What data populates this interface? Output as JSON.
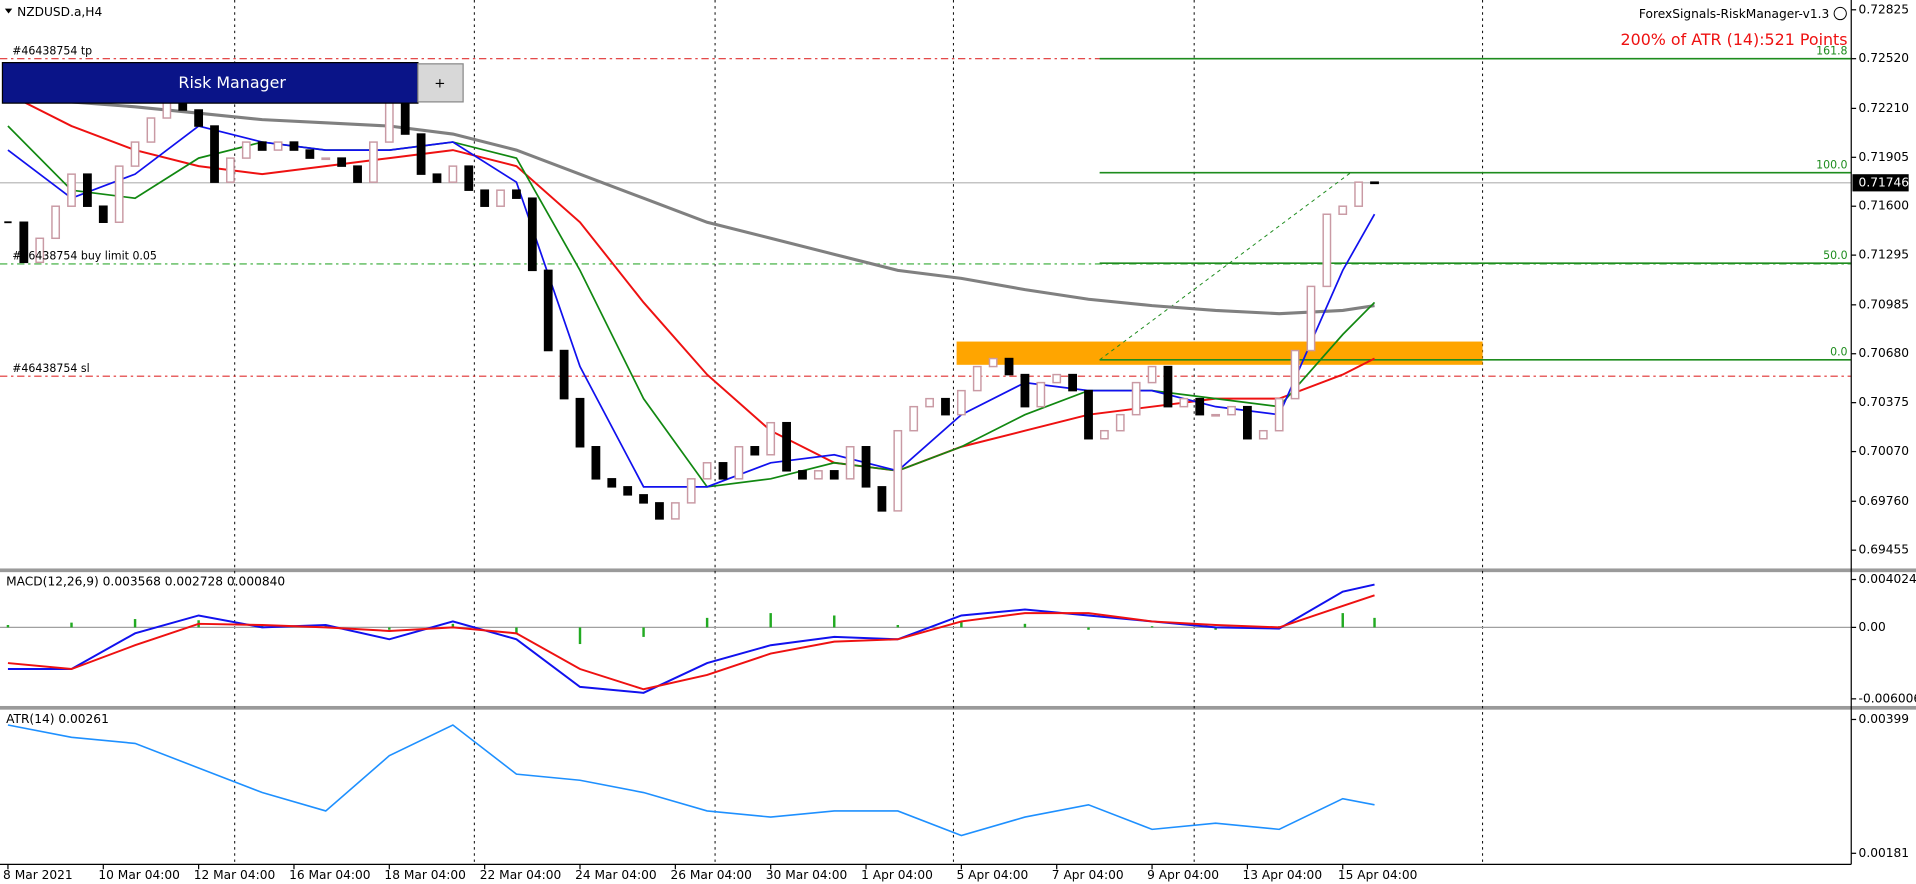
{
  "header": {
    "symbol": "NZDUSD.a,H4",
    "indicator": "ForexSignals-RiskManager-v1.3",
    "annotation": "200% of ATR (14):521 Points"
  },
  "ui": {
    "panel_title": "Risk Manager",
    "button": "+"
  },
  "chart_data": [
    {
      "type": "candlestick",
      "xlim": [
        -0.5,
        116
      ],
      "ylim": [
        0.69341,
        0.72886
      ],
      "yticks": [
        0.72825,
        {
          "value": 0.7252,
          "label": "0.72520"
        },
        {
          "value": 0.7221,
          "label": "0.72210"
        },
        0.71905,
        {
          "value": 0.716,
          "label": "0.71600"
        },
        0.71295,
        0.70985,
        {
          "value": 0.7068,
          "label": "0.70680"
        },
        0.70375,
        {
          "value": 0.7007,
          "label": "0.70070"
        },
        {
          "value": 0.6976,
          "label": "0.69760"
        },
        0.69455
      ],
      "separators": [
        14.27,
        29.35,
        44.5,
        59.5,
        74.65,
        92.8
      ],
      "up_color": "#c99aa4",
      "down_color": "#000000",
      "close": [
        0.715,
        0.7125,
        0.714,
        0.716,
        0.718,
        0.716,
        0.715,
        0.7185,
        0.72,
        0.7215,
        0.7225,
        0.722,
        0.721,
        0.7175,
        0.719,
        0.72,
        0.7195,
        0.72,
        0.7195,
        0.719,
        0.719,
        0.7185,
        0.7175,
        0.72,
        0.7225,
        0.7205,
        0.718,
        0.7175,
        0.7185,
        0.717,
        0.716,
        0.717,
        0.7165,
        0.712,
        0.707,
        0.704,
        0.701,
        0.699,
        0.6985,
        0.698,
        0.6975,
        0.6965,
        0.6975,
        0.699,
        0.7,
        0.699,
        0.701,
        0.7005,
        0.7025,
        0.6995,
        0.699,
        0.6995,
        0.699,
        0.701,
        0.6985,
        0.697,
        0.702,
        0.7035,
        0.704,
        0.703,
        0.7045,
        0.706,
        0.7065,
        0.7055,
        0.7035,
        0.705,
        0.7055,
        0.7045,
        0.7015,
        0.702,
        0.703,
        0.705,
        0.706,
        0.7035,
        0.704,
        0.703,
        0.703,
        0.7035,
        0.7015,
        0.702,
        0.704,
        0.707,
        0.711,
        0.7155,
        0.716,
        0.7175,
        0.71746
      ],
      "series": [
        {
          "color": "#808080",
          "width": 2.5,
          "x": [
            0,
            4,
            8,
            12,
            16,
            20,
            24,
            28,
            32,
            36,
            40,
            44,
            48,
            52,
            56,
            60,
            64,
            68,
            72,
            76,
            80,
            84,
            86
          ],
          "values": [
            0.723,
            0.7225,
            0.7222,
            0.7218,
            0.7214,
            0.7212,
            0.721,
            0.7205,
            0.7195,
            0.718,
            0.7165,
            0.715,
            0.714,
            0.713,
            0.712,
            0.7115,
            0.7108,
            0.7102,
            0.7098,
            0.7095,
            0.7093,
            0.7095,
            0.7098
          ]
        },
        {
          "color": "#ee1111",
          "width": 1.6,
          "x": [
            0,
            4,
            8,
            12,
            16,
            20,
            24,
            28,
            32,
            36,
            40,
            44,
            48,
            52,
            56,
            60,
            64,
            68,
            72,
            76,
            80,
            84,
            86
          ],
          "values": [
            0.723,
            0.721,
            0.7195,
            0.7185,
            0.718,
            0.7185,
            0.719,
            0.7195,
            0.7185,
            0.715,
            0.71,
            0.7055,
            0.702,
            0.7,
            0.6995,
            0.701,
            0.702,
            0.703,
            0.7035,
            0.704,
            0.704,
            0.7055,
            0.7065
          ]
        },
        {
          "color": "#118811",
          "width": 1.4,
          "x": [
            0,
            4,
            8,
            12,
            16,
            20,
            24,
            28,
            32,
            36,
            40,
            44,
            48,
            52,
            56,
            60,
            64,
            68,
            72,
            76,
            80,
            84,
            86
          ],
          "values": [
            0.721,
            0.717,
            0.7165,
            0.719,
            0.72,
            0.7195,
            0.7195,
            0.72,
            0.719,
            0.712,
            0.704,
            0.6985,
            0.699,
            0.7,
            0.6995,
            0.701,
            0.703,
            0.7045,
            0.7045,
            0.704,
            0.7035,
            0.708,
            0.71
          ]
        },
        {
          "color": "#1111ee",
          "width": 1.4,
          "x": [
            0,
            4,
            8,
            12,
            16,
            20,
            24,
            28,
            32,
            36,
            40,
            44,
            48,
            52,
            56,
            60,
            64,
            68,
            72,
            76,
            80,
            84,
            86
          ],
          "values": [
            0.7195,
            0.7165,
            0.718,
            0.721,
            0.72,
            0.7195,
            0.7195,
            0.72,
            0.7175,
            0.706,
            0.6985,
            0.6985,
            0.7,
            0.7005,
            0.6995,
            0.703,
            0.705,
            0.7045,
            0.7045,
            0.7035,
            0.703,
            0.712,
            0.7155
          ]
        }
      ],
      "levels": [
        {
          "name": "#46438754 tp",
          "value": 0.7252,
          "color": "#e03030",
          "dash": "6 3 2 3"
        },
        {
          "name": "#46438754 buy limit 0.05",
          "value": 0.7124,
          "color": "#33aa33",
          "dash": "6 3 2 3"
        },
        {
          "name": "#46438754 sl",
          "value": 0.7054,
          "color": "#e03030",
          "dash": "6 3 2 3"
        }
      ],
      "last_price": 0.71746,
      "zone": {
        "x": [
          59.7,
          92.8
        ],
        "values": [
          0.70611,
          0.70756
        ],
        "color": "#ffa500"
      },
      "fibo": {
        "x": [
          68.7,
          116
        ],
        "color": "#1e8c1e",
        "levels": [
          {
            "label": "161.8",
            "value": 0.7252
          },
          {
            "label": "100.0",
            "value": 0.71809
          },
          {
            "label": "50.0",
            "value": 0.71245
          },
          {
            "label": "0.0",
            "value": 0.70642
          }
        ],
        "trend": {
          "x": [
            68.7,
            84.5
          ],
          "values": [
            0.70642,
            0.71809
          ]
        }
      }
    },
    {
      "type": "macd",
      "title": "MACD(12,26,9) 0.003568 0.002728 0.000840",
      "xlim": [
        -0.5,
        116
      ],
      "ylim": [
        -0.006708,
        0.004643
      ],
      "yticks": [
        0.004024,
        {
          "value": 0,
          "label": "0.00"
        },
        -0.006006
      ],
      "x": [
        0,
        4,
        8,
        12,
        16,
        20,
        24,
        28,
        32,
        36,
        40,
        44,
        48,
        52,
        56,
        60,
        64,
        68,
        72,
        76,
        80,
        84,
        86
      ],
      "histogram": {
        "color": "#22aa22",
        "values": [
          0.0002,
          0.0004,
          0.0007,
          0.0006,
          0.0002,
          0.0002,
          -0.0002,
          0.0003,
          -0.0005,
          -0.0014,
          -0.0008,
          0.0008,
          0.0012,
          0.001,
          0.0002,
          0.0005,
          0.0003,
          -0.0002,
          0.0001,
          -0.0002,
          0.0001,
          0.0012,
          0.0008
        ]
      },
      "series": [
        {
          "color": "#1111ee",
          "values": [
            -0.0035,
            -0.0035,
            -0.0005,
            0.001,
            0.0,
            0.0002,
            -0.001,
            0.0005,
            -0.001,
            -0.005,
            -0.0055,
            -0.003,
            -0.0015,
            -0.0008,
            -0.001,
            0.001,
            0.0015,
            0.001,
            0.0005,
            0.0,
            -0.0001,
            0.003,
            0.0036
          ]
        },
        {
          "color": "#ee1111",
          "values": [
            -0.003,
            -0.0035,
            -0.0015,
            0.0003,
            0.0002,
            0.0,
            -0.0003,
            0.0,
            -0.0005,
            -0.0035,
            -0.0052,
            -0.004,
            -0.0022,
            -0.0012,
            -0.001,
            0.0005,
            0.0012,
            0.0012,
            0.0005,
            0.0002,
            0.0,
            0.0018,
            0.0027
          ]
        }
      ]
    },
    {
      "type": "line",
      "title": "ATR(14) 0.00261",
      "xlim": [
        -0.5,
        116
      ],
      "ylim": [
        0.00163,
        0.00415
      ],
      "yticks": [
        0.00399,
        0.00181
      ],
      "xticks": [
        {
          "value": 0,
          "label": "8 Mar 2021"
        },
        {
          "value": 6,
          "label": "10 Mar 04:00"
        },
        {
          "value": 12,
          "label": "12 Mar 04:00"
        },
        {
          "value": 18,
          "label": "16 Mar 04:00"
        },
        {
          "value": 24,
          "label": "18 Mar 04:00"
        },
        {
          "value": 30,
          "label": "22 Mar 04:00"
        },
        {
          "value": 36,
          "label": "24 Mar 04:00"
        },
        {
          "value": 42,
          "label": "26 Mar 04:00"
        },
        {
          "value": 48,
          "label": "30 Mar 04:00"
        },
        {
          "value": 54,
          "label": "1 Apr 04:00"
        },
        {
          "value": 60,
          "label": "5 Apr 04:00"
        },
        {
          "value": 66,
          "label": "7 Apr 04:00"
        },
        {
          "value": 72,
          "label": "9 Apr 04:00"
        },
        {
          "value": 78,
          "label": "13 Apr 04:00"
        },
        {
          "value": 84,
          "label": "15 Apr 04:00"
        }
      ],
      "x": [
        0,
        4,
        8,
        12,
        16,
        20,
        24,
        28,
        32,
        36,
        40,
        44,
        48,
        52,
        56,
        60,
        64,
        68,
        72,
        76,
        80,
        84,
        86
      ],
      "series": [
        {
          "color": "#1e90ff",
          "values": [
            0.0039,
            0.0037,
            0.0036,
            0.0032,
            0.0028,
            0.0025,
            0.0034,
            0.0039,
            0.0031,
            0.003,
            0.0028,
            0.0025,
            0.0024,
            0.0025,
            0.0025,
            0.0021,
            0.0024,
            0.0026,
            0.0022,
            0.0023,
            0.0022,
            0.0027,
            0.0026
          ]
        }
      ]
    }
  ]
}
